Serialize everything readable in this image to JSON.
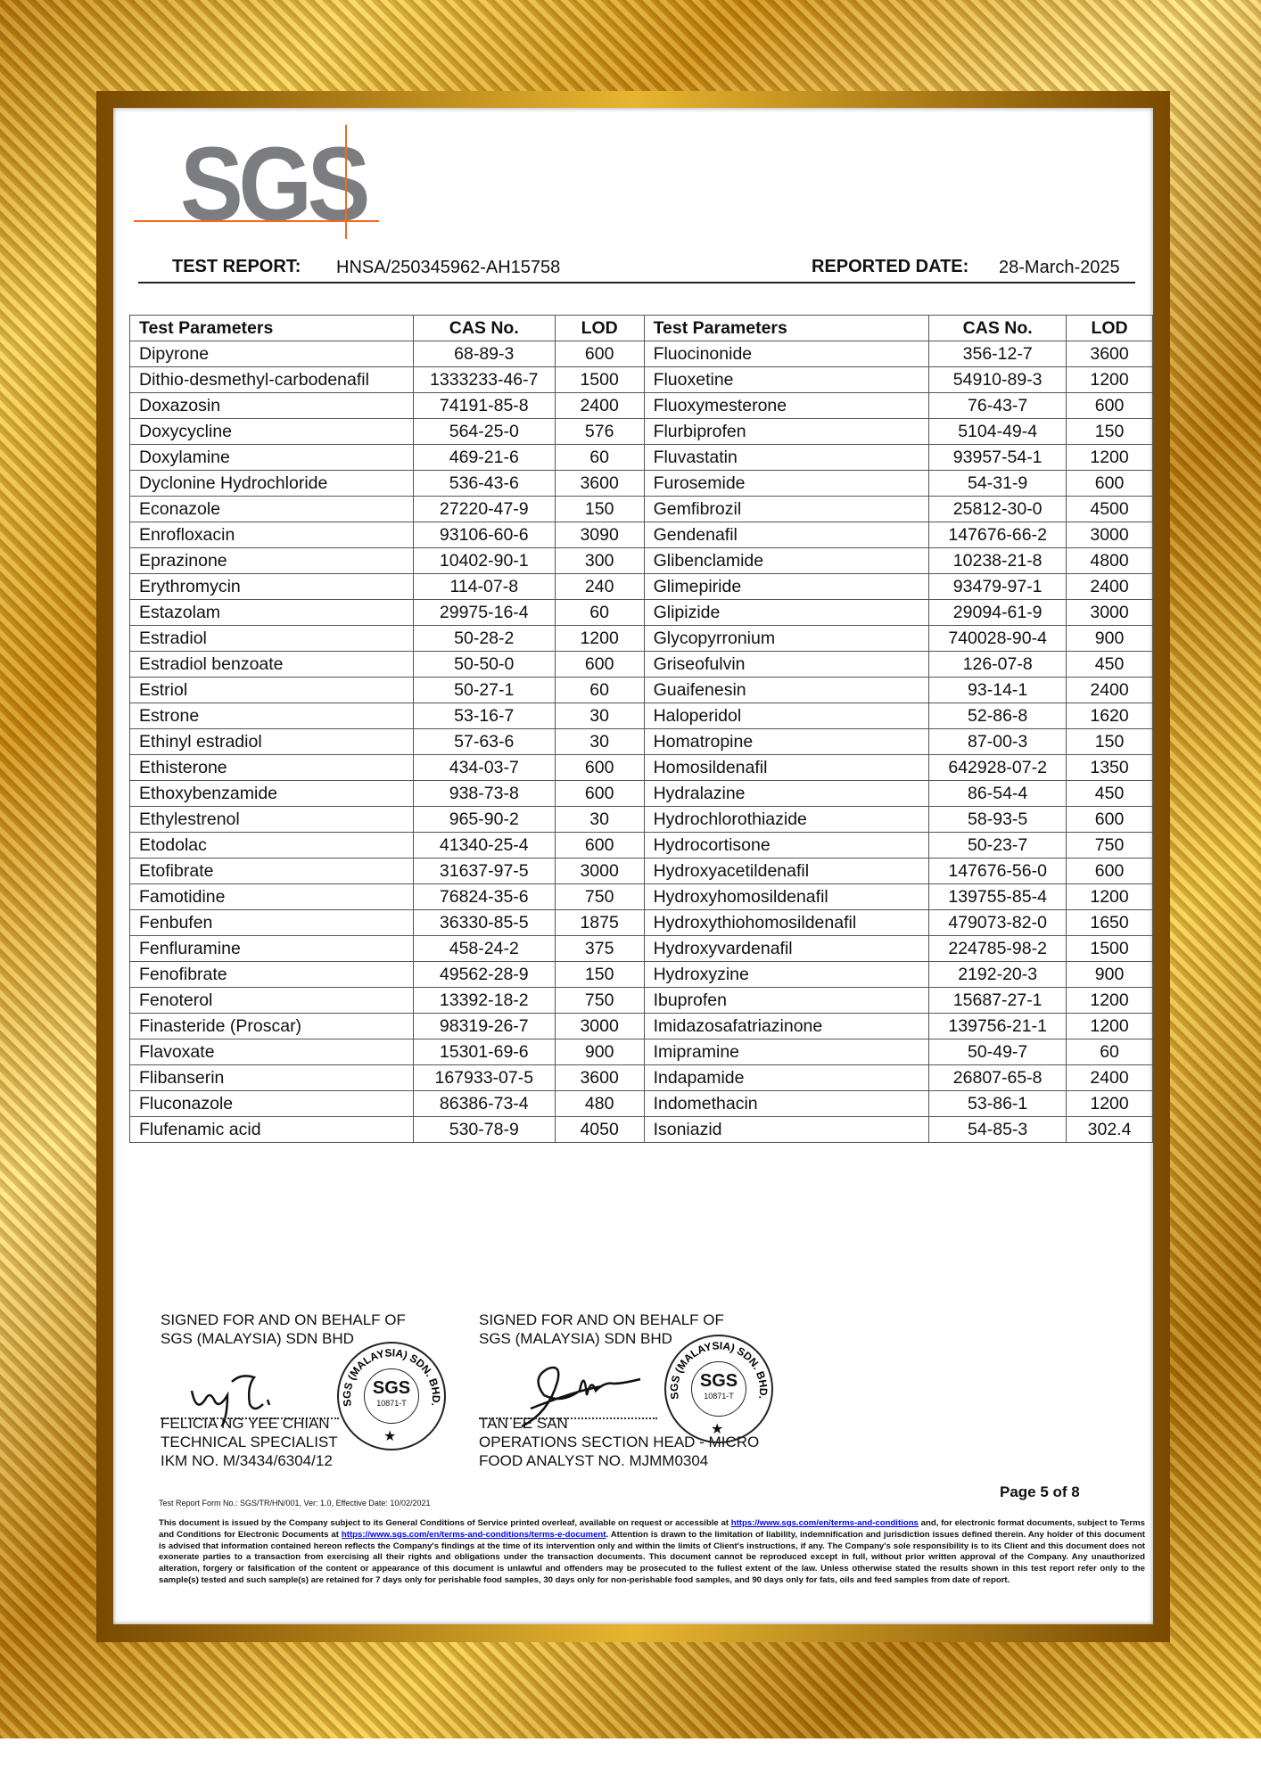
{
  "logo": {
    "text": "SGS"
  },
  "header": {
    "report_label": "TEST REPORT:",
    "report_no": "HNSA/250345962-AH15758",
    "date_label": "REPORTED DATE:",
    "date": "28-March-2025"
  },
  "table": {
    "headers": [
      "Test Parameters",
      "CAS No.",
      "LOD",
      "Test Parameters",
      "CAS No.",
      "LOD"
    ],
    "rows": [
      [
        "Dipyrone",
        "68-89-3",
        "600",
        "Fluocinonide",
        "356-12-7",
        "3600"
      ],
      [
        "Dithio-desmethyl-carbodenafil",
        "1333233-46-7",
        "1500",
        "Fluoxetine",
        "54910-89-3",
        "1200"
      ],
      [
        "Doxazosin",
        "74191-85-8",
        "2400",
        "Fluoxymesterone",
        "76-43-7",
        "600"
      ],
      [
        "Doxycycline",
        "564-25-0",
        "576",
        "Flurbiprofen",
        "5104-49-4",
        "150"
      ],
      [
        "Doxylamine",
        "469-21-6",
        "60",
        "Fluvastatin",
        "93957-54-1",
        "1200"
      ],
      [
        "Dyclonine Hydrochloride",
        "536-43-6",
        "3600",
        "Furosemide",
        "54-31-9",
        "600"
      ],
      [
        "Econazole",
        "27220-47-9",
        "150",
        "Gemfibrozil",
        "25812-30-0",
        "4500"
      ],
      [
        "Enrofloxacin",
        "93106-60-6",
        "3090",
        "Gendenafil",
        "147676-66-2",
        "3000"
      ],
      [
        "Eprazinone",
        "10402-90-1",
        "300",
        "Glibenclamide",
        "10238-21-8",
        "4800"
      ],
      [
        "Erythromycin",
        "114-07-8",
        "240",
        "Glimepiride",
        "93479-97-1",
        "2400"
      ],
      [
        "Estazolam",
        "29975-16-4",
        "60",
        "Glipizide",
        "29094-61-9",
        "3000"
      ],
      [
        "Estradiol",
        "50-28-2",
        "1200",
        "Glycopyrronium",
        "740028-90-4",
        "900"
      ],
      [
        "Estradiol benzoate",
        "50-50-0",
        "600",
        "Griseofulvin",
        "126-07-8",
        "450"
      ],
      [
        "Estriol",
        "50-27-1",
        "60",
        "Guaifenesin",
        "93-14-1",
        "2400"
      ],
      [
        "Estrone",
        "53-16-7",
        "30",
        "Haloperidol",
        "52-86-8",
        "1620"
      ],
      [
        "Ethinyl estradiol",
        "57-63-6",
        "30",
        "Homatropine",
        "87-00-3",
        "150"
      ],
      [
        "Ethisterone",
        "434-03-7",
        "600",
        "Homosildenafil",
        "642928-07-2",
        "1350"
      ],
      [
        "Ethoxybenzamide",
        "938-73-8",
        "600",
        "Hydralazine",
        "86-54-4",
        "450"
      ],
      [
        "Ethylestrenol",
        "965-90-2",
        "30",
        "Hydrochlorothiazide",
        "58-93-5",
        "600"
      ],
      [
        "Etodolac",
        "41340-25-4",
        "600",
        "Hydrocortisone",
        "50-23-7",
        "750"
      ],
      [
        "Etofibrate",
        "31637-97-5",
        "3000",
        "Hydroxyacetildenafil",
        "147676-56-0",
        "600"
      ],
      [
        "Famotidine",
        "76824-35-6",
        "750",
        "Hydroxyhomosildenafil",
        "139755-85-4",
        "1200"
      ],
      [
        "Fenbufen",
        "36330-85-5",
        "1875",
        "Hydroxythiohomosildenafil",
        "479073-82-0",
        "1650"
      ],
      [
        "Fenfluramine",
        "458-24-2",
        "375",
        "Hydroxyvardenafil",
        "224785-98-2",
        "1500"
      ],
      [
        "Fenofibrate",
        "49562-28-9",
        "150",
        "Hydroxyzine",
        "2192-20-3",
        "900"
      ],
      [
        "Fenoterol",
        "13392-18-2",
        "750",
        "Ibuprofen",
        "15687-27-1",
        "1200"
      ],
      [
        "Finasteride (Proscar)",
        "98319-26-7",
        "3000",
        "Imidazosafatriazinone",
        "139756-21-1",
        "1200"
      ],
      [
        "Flavoxate",
        "15301-69-6",
        "900",
        "Imipramine",
        "50-49-7",
        "60"
      ],
      [
        "Flibanserin",
        "167933-07-5",
        "3600",
        "Indapamide",
        "26807-65-8",
        "2400"
      ],
      [
        "Fluconazole",
        "86386-73-4",
        "480",
        "Indomethacin",
        "53-86-1",
        "1200"
      ],
      [
        "Flufenamic acid",
        "530-78-9",
        "4050",
        "Isoniazid",
        "54-85-3",
        "302.4"
      ]
    ]
  },
  "signatures": [
    {
      "line1": "SIGNED FOR AND ON BEHALF OF",
      "line2": "SGS (MALAYSIA) SDN BHD",
      "name": "FELICIA NG YEE CHIAN",
      "title": "TECHNICAL SPECIALIST",
      "reg": "IKM NO. M/3434/6304/12"
    },
    {
      "line1": "SIGNED FOR AND ON BEHALF OF",
      "line2": "SGS (MALAYSIA) SDN BHD",
      "name": "TAN EE SAN",
      "title": "OPERATIONS SECTION HEAD - MICRO",
      "reg": "FOOD ANALYST NO. MJMM0304"
    }
  ],
  "stamp": {
    "ring_text": "SGS (MALAYSIA) SDN. BHD.",
    "center": "SGS",
    "number": "10871-T"
  },
  "footer": {
    "page": "Page 5 of 8",
    "form": "Test Report Form No.: SGS/TR/HN/001, Ver: 1.0, Effective Date: 10/02/2021",
    "fine_1": "This document is issued by the Company subject to its General Conditions of Service printed overleaf, available on request or accessible at ",
    "link_1": "https://www.sgs.com/en/terms-and-conditions",
    "fine_2": " and, for electronic format documents, subject to Terms and Conditions for Electronic Documents at ",
    "link_2": "https://www.sgs.com/en/terms-and-conditions/terms-e-document",
    "fine_3": ". Attention is drawn to the limitation of liability, indemnification and jurisdiction issues defined therein. Any holder of this document is advised that information contained hereon reflects the Company's findings at the time of its intervention only and within the limits of Client's instructions, if any. The Company's sole responsibility is to its Client and this document does not exonerate parties to a transaction from exercising all their rights and obligations under the transaction documents. This document cannot be reproduced except in full, without prior written approval of the Company. Any unauthorized alteration, forgery or falsification of the content or appearance of this document is unlawful and offenders may be prosecuted to the fullest extent of the law. Unless otherwise stated the results shown in this test report refer only to the sample(s) tested and such sample(s) are retained for 7 days only for perishable food samples, 30 days only for non-perishable food samples, and 90 days only for fats, oils and feed samples from date of report."
  },
  "colors": {
    "frame_gold": "#d9a520",
    "logo_gray": "#7c7d80",
    "logo_orange": "#f26a21",
    "link": "#0000ff"
  }
}
